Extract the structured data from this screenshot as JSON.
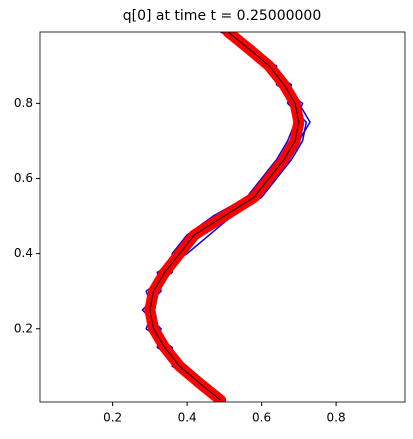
{
  "chart_data": {
    "type": "line",
    "title": "q[0] at time t =     0.25000000",
    "xlim": [
      0.005,
      0.985
    ],
    "ylim": [
      0.005,
      0.99
    ],
    "xticks": [
      0.2,
      0.4,
      0.6,
      0.8
    ],
    "yticks": [
      0.2,
      0.4,
      0.6,
      0.8
    ],
    "series": [
      {
        "color": "#0000ff",
        "width": 1.5,
        "x": [
          0.5,
          0.42,
          0.4,
          0.32,
          0.33,
          0.28,
          0.33,
          0.32,
          0.4,
          0.46,
          0.52,
          0.6,
          0.64,
          0.68,
          0.71,
          0.72,
          0.67,
          0.68,
          0.6,
          0.58,
          0.5
        ],
        "values": [
          0.01,
          0.05,
          0.1,
          0.15,
          0.2,
          0.25,
          0.3,
          0.35,
          0.4,
          0.45,
          0.5,
          0.55,
          0.6,
          0.65,
          0.7,
          0.75,
          0.8,
          0.85,
          0.9,
          0.95,
          0.99
        ]
      },
      {
        "color": "#0000ff",
        "width": 1.5,
        "x": [
          0.48,
          0.46,
          0.36,
          0.36,
          0.29,
          0.31,
          0.29,
          0.36,
          0.36,
          0.4,
          0.47,
          0.56,
          0.6,
          0.64,
          0.67,
          0.69,
          0.71,
          0.64,
          0.64,
          0.54,
          0.52
        ],
        "values": [
          0.01,
          0.05,
          0.1,
          0.15,
          0.2,
          0.25,
          0.3,
          0.35,
          0.4,
          0.45,
          0.5,
          0.55,
          0.6,
          0.65,
          0.7,
          0.75,
          0.8,
          0.85,
          0.9,
          0.95,
          0.99
        ]
      },
      {
        "color": "#0000ff",
        "width": 1.5,
        "x": [
          0.5,
          0.45,
          0.39,
          0.33,
          0.3,
          0.29,
          0.3,
          0.35,
          0.37,
          0.44,
          0.5,
          0.6,
          0.61,
          0.67,
          0.7,
          0.73,
          0.7,
          0.65,
          0.63,
          0.57,
          0.49
        ],
        "values": [
          0.01,
          0.05,
          0.1,
          0.15,
          0.2,
          0.25,
          0.3,
          0.35,
          0.4,
          0.45,
          0.5,
          0.55,
          0.6,
          0.65,
          0.7,
          0.75,
          0.8,
          0.85,
          0.9,
          0.95,
          0.99
        ]
      },
      {
        "color": "#ff0000",
        "width": 11,
        "x": [
          0.49,
          0.44,
          0.38,
          0.34,
          0.31,
          0.3,
          0.31,
          0.34,
          0.38,
          0.42,
          0.5,
          0.58,
          0.62,
          0.66,
          0.69,
          0.7,
          0.69,
          0.66,
          0.62,
          0.56,
          0.51
        ],
        "values": [
          0.01,
          0.05,
          0.1,
          0.15,
          0.2,
          0.25,
          0.3,
          0.35,
          0.4,
          0.45,
          0.5,
          0.55,
          0.6,
          0.65,
          0.7,
          0.75,
          0.8,
          0.85,
          0.9,
          0.95,
          0.99
        ]
      },
      {
        "color": "#000000",
        "width": 1,
        "x": [
          0.49,
          0.44,
          0.38,
          0.34,
          0.31,
          0.3,
          0.31,
          0.34,
          0.38,
          0.42,
          0.5,
          0.58,
          0.62,
          0.66,
          0.69,
          0.7,
          0.69,
          0.66,
          0.62,
          0.56,
          0.51
        ],
        "values": [
          0.01,
          0.05,
          0.1,
          0.15,
          0.2,
          0.25,
          0.3,
          0.35,
          0.4,
          0.45,
          0.5,
          0.55,
          0.6,
          0.65,
          0.7,
          0.75,
          0.8,
          0.85,
          0.9,
          0.95,
          0.99
        ]
      }
    ]
  }
}
